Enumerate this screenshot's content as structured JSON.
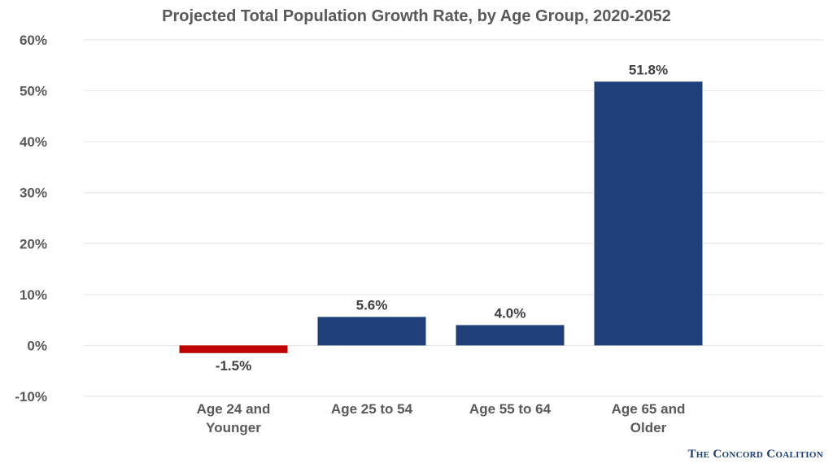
{
  "chart_data": {
    "type": "bar",
    "title": "Projected Total Population Growth Rate, by Age Group, 2020-2052",
    "categories": [
      [
        "Age 24 and",
        "Younger"
      ],
      [
        "Age 25 to 54"
      ],
      [
        "Age 55 to 64"
      ],
      [
        "Age 65 and",
        "Older"
      ]
    ],
    "values": [
      -1.5,
      5.6,
      4.0,
      51.8
    ],
    "value_labels": [
      "-1.5%",
      "5.6%",
      "4.0%",
      "51.8%"
    ],
    "bar_colors": [
      "#c00000",
      "#1f3f7b",
      "#1f3f7b",
      "#1f3f7b"
    ],
    "ylim": [
      -10,
      60
    ],
    "yticks": [
      60,
      50,
      40,
      30,
      20,
      10,
      0,
      -10
    ],
    "ytick_labels": [
      "60%",
      "50%",
      "40%",
      "30%",
      "20%",
      "10%",
      "0%",
      "-10%"
    ],
    "xlabel": "",
    "ylabel": "",
    "grid": true,
    "legend": "none"
  },
  "footer": {
    "source": "The Concord Coalition"
  }
}
